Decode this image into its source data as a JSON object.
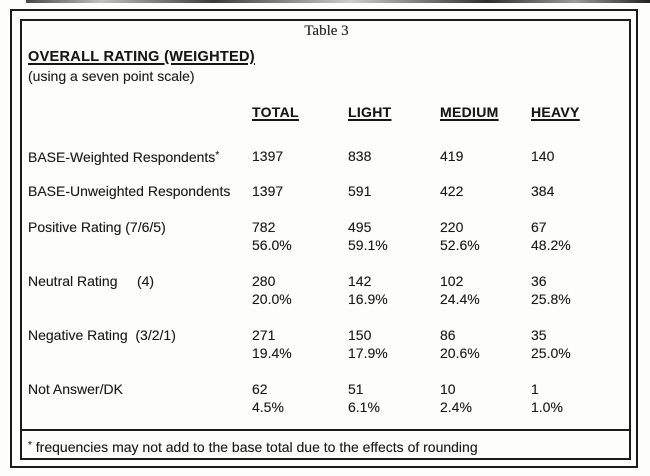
{
  "caption": "Table 3",
  "title": "OVERALL RATING (WEIGHTED)",
  "subtitle": "(using a seven point scale)",
  "columns": [
    "TOTAL",
    "LIGHT",
    "MEDIUM",
    "HEAVY"
  ],
  "rows": [
    {
      "label": "BASE-Weighted Respondents",
      "marker": "*",
      "values": [
        "1397",
        "838",
        "419",
        "140"
      ]
    },
    {
      "label": "BASE-Unweighted Respondents",
      "values": [
        "1397",
        "591",
        "422",
        "384"
      ]
    },
    {
      "label": "Positive Rating (7/6/5)",
      "values": [
        "782",
        "495",
        "220",
        "67"
      ],
      "pcts": [
        "56.0%",
        "59.1%",
        "52.6%",
        "48.2%"
      ]
    },
    {
      "label": "Neutral Rating     (4)",
      "values": [
        "280",
        "142",
        "102",
        "36"
      ],
      "pcts": [
        "20.0%",
        "16.9%",
        "24.4%",
        "25.8%"
      ]
    },
    {
      "label": "Negative Rating  (3/2/1)",
      "values": [
        "271",
        "150",
        "86",
        "35"
      ],
      "pcts": [
        "19.4%",
        "17.9%",
        "20.6%",
        "25.0%"
      ]
    },
    {
      "label": "Not Answer/DK",
      "values": [
        "62",
        "51",
        "10",
        "1"
      ],
      "pcts": [
        "4.5%",
        "6.1%",
        "2.4%",
        "1.0%"
      ]
    }
  ],
  "footnote": {
    "marker": "*",
    "text": "frequencies may not add to the base total due to the effects of rounding"
  },
  "colors": {
    "ink": "#1c1c1c",
    "paper": "#fdfdfc"
  }
}
